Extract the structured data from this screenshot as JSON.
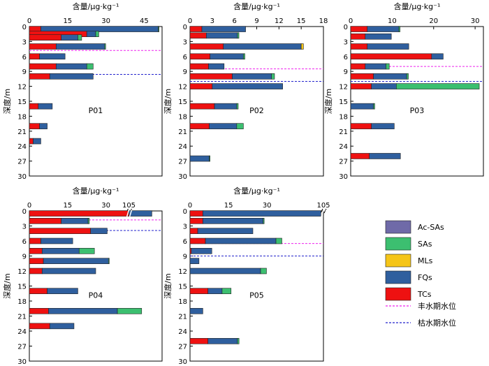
{
  "chart_data": {
    "type": "bar",
    "orientation": "horizontal-stacked",
    "xlabel": "含量/μg·kg⁻¹",
    "ylabel": "深度/m",
    "y_ticks": [
      0,
      3,
      6,
      9,
      12,
      15,
      18,
      21,
      24,
      27,
      30
    ],
    "ylim": [
      0,
      30
    ],
    "legend": {
      "position": "bottom-right",
      "series": [
        {
          "key": "Ac-SAs",
          "label": "Ac-SAs",
          "color": "#6F6AA8"
        },
        {
          "key": "SAs",
          "label": "SAs",
          "color": "#3CBF70"
        },
        {
          "key": "MLs",
          "label": "MLs",
          "color": "#F5C518"
        },
        {
          "key": "FQs",
          "label": "FQs",
          "color": "#2F5F9E"
        },
        {
          "key": "TCs",
          "label": "TCs",
          "color": "#EE1111"
        }
      ],
      "lines": [
        {
          "label": "丰水期水位",
          "color": "#EE22EE"
        },
        {
          "label": "枯水期水位",
          "color": "#2222CC"
        }
      ]
    },
    "panels": [
      {
        "label": "P01",
        "x_ticks": [
          "0",
          "15",
          "30",
          "45"
        ],
        "x_tick_values": [
          0,
          15,
          30,
          45
        ],
        "xlim": [
          0,
          52
        ],
        "wet_level": 4.8,
        "dry_level": 9.6,
        "bars": [
          {
            "depth": 0.5,
            "TCs": 4.5,
            "FQs": 46,
            "SAs": 0.3
          },
          {
            "depth": 1.5,
            "TCs": 22.5,
            "FQs": 3.5,
            "SAs": 1.2
          },
          {
            "depth": 2.2,
            "TCs": 12.5,
            "FQs": 6.5,
            "SAs": 1.5
          },
          {
            "depth": 4.0,
            "TCs": 10.5,
            "FQs": 19,
            "SAs": 0.4
          },
          {
            "depth": 6.0,
            "TCs": 4,
            "FQs": 10
          },
          {
            "depth": 8.0,
            "TCs": 10.5,
            "FQs": 12,
            "SAs": 2.5
          },
          {
            "depth": 10.0,
            "TCs": 8,
            "FQs": 17
          },
          {
            "depth": 16.0,
            "TCs": 3.5,
            "FQs": 5.5
          },
          {
            "depth": 20.0,
            "TCs": 4,
            "FQs": 3
          },
          {
            "depth": 23.0,
            "TCs": 1.5,
            "FQs": 3
          }
        ]
      },
      {
        "label": "P02",
        "x_ticks": [
          "0",
          "3",
          "6",
          "9",
          "12",
          "15",
          "18"
        ],
        "x_tick_values": [
          0,
          3,
          6,
          9,
          12,
          15,
          18
        ],
        "xlim": [
          0,
          18
        ],
        "wet_level": 8.5,
        "dry_level": 11.0,
        "bars": [
          {
            "depth": 0.5,
            "TCs": 1.6,
            "FQs": 5.9
          },
          {
            "depth": 1.8,
            "TCs": 2.2,
            "FQs": 4.2,
            "SAs": 0.2
          },
          {
            "depth": 4.0,
            "TCs": 4.5,
            "FQs": 10.5,
            "MLs": 0.3
          },
          {
            "depth": 6.0,
            "TCs": 2.7,
            "FQs": 4.5,
            "SAs": 0.2
          },
          {
            "depth": 8.0,
            "TCs": 2.5,
            "FQs": 2.1
          },
          {
            "depth": 10.0,
            "TCs": 5.7,
            "FQs": 5.3,
            "SAs": 0.4
          },
          {
            "depth": 12.0,
            "TCs": 3.0,
            "FQs": 9.5
          },
          {
            "depth": 16.0,
            "TCs": 3.3,
            "FQs": 3.0,
            "SAs": 0.2
          },
          {
            "depth": 20.0,
            "TCs": 2.6,
            "FQs": 3.7,
            "SAs": 0.9
          },
          {
            "depth": 26.5,
            "FQs": 2.6,
            "SAs": 0.1
          }
        ]
      },
      {
        "label": "P03",
        "x_ticks": [
          "0",
          "10",
          "20",
          "30"
        ],
        "x_tick_values": [
          0,
          10,
          20,
          30
        ],
        "xlim": [
          0,
          32
        ],
        "wet_level": 8.0,
        "dry_level": 11.0,
        "bars": [
          {
            "depth": 0.5,
            "TCs": 4.0,
            "FQs": 7.6,
            "SAs": 0.3
          },
          {
            "depth": 2.0,
            "TCs": 3.5,
            "FQs": 6.3
          },
          {
            "depth": 4.0,
            "TCs": 4.0,
            "FQs": 10.0
          },
          {
            "depth": 6.0,
            "TCs": 19.5,
            "FQs": 2.8
          },
          {
            "depth": 8.0,
            "TCs": 3.5,
            "FQs": 5.0,
            "SAs": 0.8
          },
          {
            "depth": 10.0,
            "TCs": 5.5,
            "FQs": 8.0,
            "SAs": 0.4
          },
          {
            "depth": 12.0,
            "TCs": 5.0,
            "FQs": 6.0,
            "SAs": 20.0
          },
          {
            "depth": 16.0,
            "FQs": 5.5,
            "SAs": 0.3
          },
          {
            "depth": 20.0,
            "TCs": 5.0,
            "FQs": 5.5
          },
          {
            "depth": 26.0,
            "TCs": 4.5,
            "FQs": 7.5
          }
        ]
      },
      {
        "label": "P04",
        "x_ticks": [
          "0",
          "15",
          "30",
          "105"
        ],
        "x_tick_values": [
          0,
          15,
          30,
          105
        ],
        "xlim": [
          0,
          52
        ],
        "axis_break": {
          "at": 39,
          "display_offset": 66
        },
        "wet_level": 1.8,
        "dry_level": 3.9,
        "bars": [
          {
            "depth": 0.5,
            "TCs": 39,
            "FQs": 9,
            "display_break": true
          },
          {
            "depth": 2.0,
            "TCs": 12.5,
            "FQs": 10.5,
            "SAs": 0.5
          },
          {
            "depth": 4.0,
            "TCs": 24,
            "FQs": 6.5
          },
          {
            "depth": 6.0,
            "TCs": 4.5,
            "FQs": 12.5
          },
          {
            "depth": 8.0,
            "TCs": 5,
            "FQs": 14.5,
            "SAs": 6
          },
          {
            "depth": 10.0,
            "TCs": 5.5,
            "FQs": 25.5,
            "SAs": 0.3
          },
          {
            "depth": 12.0,
            "TCs": 5,
            "FQs": 21
          },
          {
            "depth": 16.0,
            "TCs": 7,
            "FQs": 12
          },
          {
            "depth": 20.0,
            "TCs": 7.5,
            "FQs": 27,
            "SAs": 9.5
          },
          {
            "depth": 23.0,
            "TCs": 8,
            "FQs": 9.5
          }
        ]
      },
      {
        "label": "P05",
        "x_ticks": [
          "0",
          "15",
          "30",
          "105"
        ],
        "x_tick_values": [
          0,
          15,
          30,
          105
        ],
        "xlim": [
          0,
          52
        ],
        "axis_break": {
          "at": 52,
          "display_offset": 53
        },
        "wet_level": 6.5,
        "dry_level": 9.0,
        "bars": [
          {
            "depth": 0.5,
            "TCs": 5,
            "FQs": 46,
            "display_break": true
          },
          {
            "depth": 2.0,
            "TCs": 5,
            "FQs": 23.5,
            "SAs": 0.4
          },
          {
            "depth": 4.0,
            "TCs": 3,
            "FQs": 21.5
          },
          {
            "depth": 6.0,
            "TCs": 6,
            "FQs": 27.5,
            "SAs": 2.3
          },
          {
            "depth": 8.0,
            "TCs": 0.5,
            "FQs": 8
          },
          {
            "depth": 10.0,
            "FQs": 3.5
          },
          {
            "depth": 12.0,
            "FQs": 27.5,
            "SAs": 2.3
          },
          {
            "depth": 16.0,
            "TCs": 7,
            "FQs": 5.5,
            "SAs": 3.5
          },
          {
            "depth": 20.0,
            "FQs": 5
          },
          {
            "depth": 26.0,
            "TCs": 7,
            "FQs": 11.5,
            "SAs": 0.6
          }
        ]
      }
    ]
  }
}
